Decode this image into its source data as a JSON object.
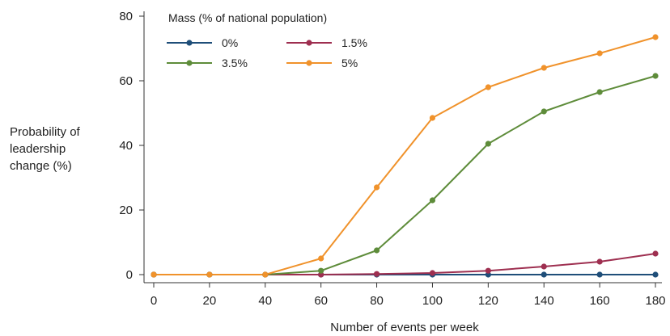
{
  "chart_data": {
    "type": "line",
    "x": [
      0,
      20,
      40,
      60,
      80,
      100,
      120,
      140,
      160,
      180
    ],
    "xlabel": "Number of events per week",
    "ylabel_lines": [
      "Probability of",
      "leadership",
      "change (%)"
    ],
    "xlim": [
      0,
      180
    ],
    "ylim": [
      0,
      80
    ],
    "xticks": [
      0,
      20,
      40,
      60,
      80,
      100,
      120,
      140,
      160,
      180
    ],
    "yticks": [
      0,
      20,
      40,
      60,
      80
    ],
    "grid": false,
    "legend": {
      "title": "Mass (% of national population)",
      "placement": "top-left"
    },
    "series": [
      {
        "name": "0%",
        "color": "#1f4e79",
        "values": [
          0,
          0,
          0,
          0,
          0,
          0,
          0,
          0,
          0,
          0
        ]
      },
      {
        "name": "1.5%",
        "color": "#9e2f50",
        "values": [
          0,
          0,
          0,
          0,
          0.2,
          0.5,
          1.2,
          2.5,
          4,
          6.5
        ]
      },
      {
        "name": "3.5%",
        "color": "#5e8c3a",
        "values": [
          0,
          0,
          0,
          1.2,
          7.5,
          23,
          40.5,
          50.5,
          56.5,
          61.5
        ]
      },
      {
        "name": "5%",
        "color": "#f0922b",
        "values": [
          0,
          0,
          0,
          5,
          27,
          48.5,
          58,
          64,
          68.5,
          73.5
        ]
      }
    ]
  }
}
